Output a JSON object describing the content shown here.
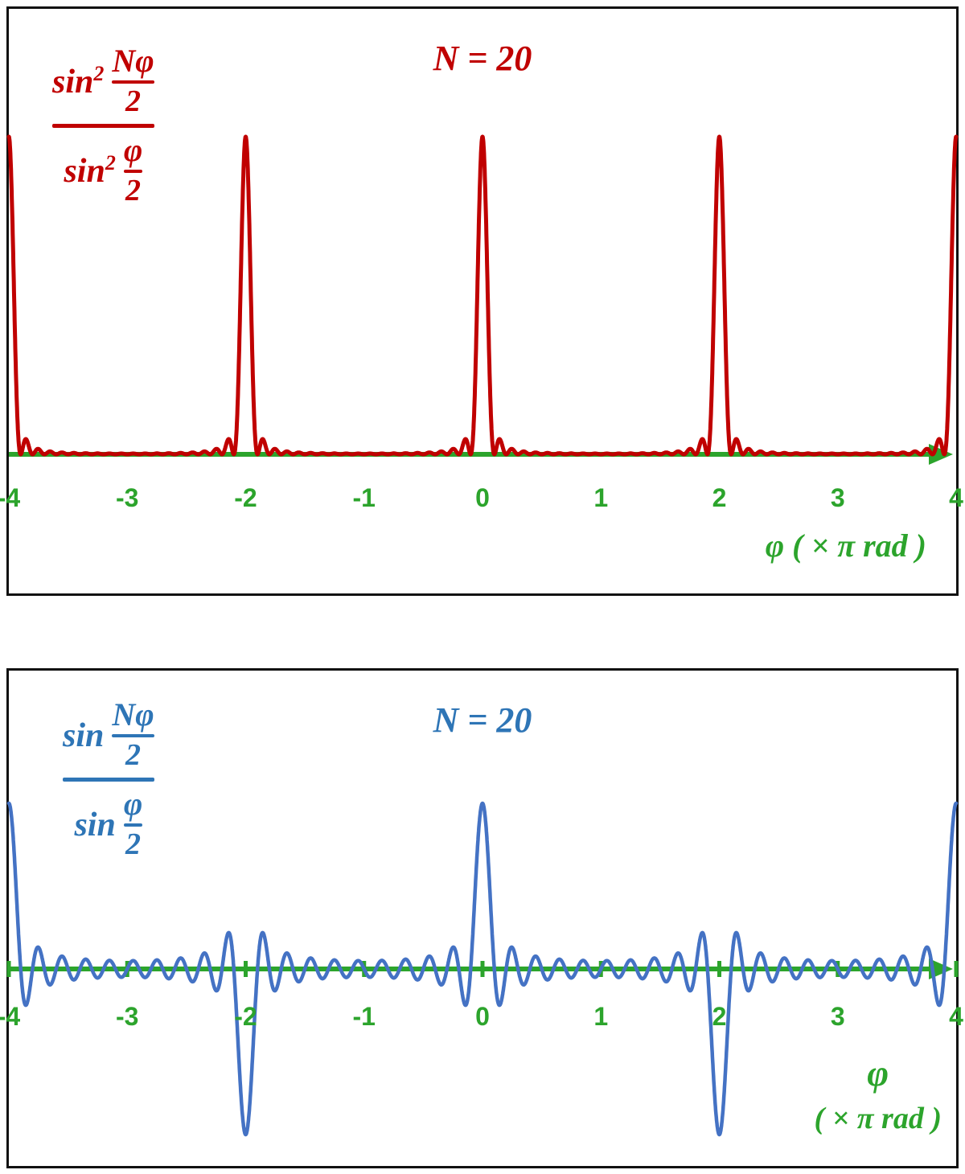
{
  "page": {
    "background": "#ffffff"
  },
  "chart_data": [
    {
      "name": "grating-intensity",
      "type": "line",
      "title": "N = 20",
      "N": 20,
      "squared": true,
      "function": "y = sin^2(N*phi/2) / sin^2(phi/2), phi plotted in units of pi rad",
      "formula": {
        "sin": "sin",
        "exponent": "2",
        "numerator_top": "Nφ",
        "numerator_bottom": "2",
        "denominator_top": "φ",
        "denominator_bottom": "2"
      },
      "curve_color": "#C00000",
      "text_color": "#C00000",
      "axis_color": "#2CA42C",
      "x_range_pi": [
        -4,
        4
      ],
      "y_range": [
        0,
        400
      ],
      "x_tick_labels": [
        "-4",
        "-3",
        "-2",
        "-1",
        "0",
        "1",
        "2",
        "3",
        "4"
      ],
      "x_axis_label": "φ  ( × π  rad )",
      "principal_maxima": [
        {
          "x_pi": -4,
          "y": 400
        },
        {
          "x_pi": -2,
          "y": 400
        },
        {
          "x_pi": 0,
          "y": 400
        },
        {
          "x_pi": 2,
          "y": 400
        },
        {
          "x_pi": 4,
          "y": 400
        }
      ],
      "show_axis_ticks": false,
      "legend": "off",
      "grid": "off"
    },
    {
      "name": "grating-amplitude",
      "type": "line",
      "title": "N = 20",
      "N": 20,
      "squared": false,
      "function": "y = sin(N*phi/2) / sin(phi/2), phi plotted in units of pi rad",
      "formula": {
        "sin": "sin",
        "exponent": "",
        "numerator_top": "Nφ",
        "numerator_bottom": "2",
        "denominator_top": "φ",
        "denominator_bottom": "2"
      },
      "curve_color": "#4472C4",
      "text_color": "#2E75B6",
      "axis_color": "#2CA42C",
      "x_range_pi": [
        -4,
        4
      ],
      "y_range": [
        -20,
        20
      ],
      "x_tick_labels": [
        "-4",
        "-3",
        "-2",
        "-1",
        "0",
        "1",
        "2",
        "3",
        "4"
      ],
      "x_axis_label_line1": "φ",
      "x_axis_label_line2": "( × π  rad )",
      "extrema": [
        {
          "x_pi": -4,
          "y": 20
        },
        {
          "x_pi": -2,
          "y": -20
        },
        {
          "x_pi": 0,
          "y": 20
        },
        {
          "x_pi": 2,
          "y": -20
        },
        {
          "x_pi": 4,
          "y": 20
        }
      ],
      "show_axis_ticks": true,
      "legend": "off",
      "grid": "off"
    }
  ]
}
